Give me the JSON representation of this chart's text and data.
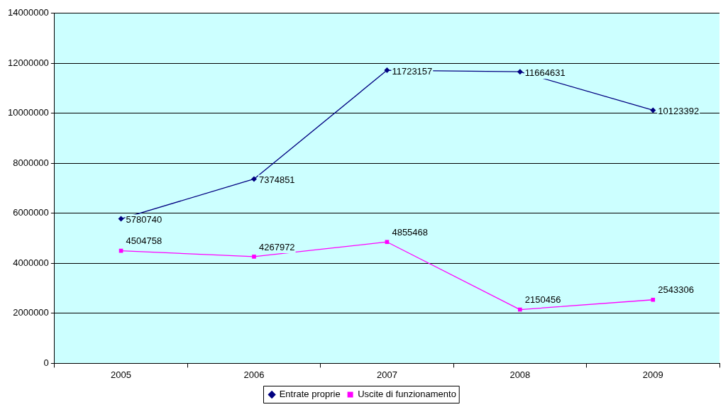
{
  "chart_data": {
    "type": "line",
    "categories": [
      "2005",
      "2006",
      "2007",
      "2008",
      "2009"
    ],
    "series": [
      {
        "name": "Entrate proprie",
        "color": "#000080",
        "values": [
          5780740,
          7374851,
          11723157,
          11664631,
          10123392
        ],
        "marker": "diamond"
      },
      {
        "name": "Uscite di funzionamento",
        "color": "#ff00ff",
        "values": [
          4504758,
          4267972,
          4855468,
          2150456,
          2543306
        ],
        "marker": "square"
      }
    ],
    "ylim": [
      0,
      14000000
    ],
    "yticks": [
      0,
      2000000,
      4000000,
      6000000,
      8000000,
      10000000,
      12000000,
      14000000
    ],
    "grid": "y",
    "legend": "bottom",
    "data_labels": true,
    "line_style": "solid"
  }
}
